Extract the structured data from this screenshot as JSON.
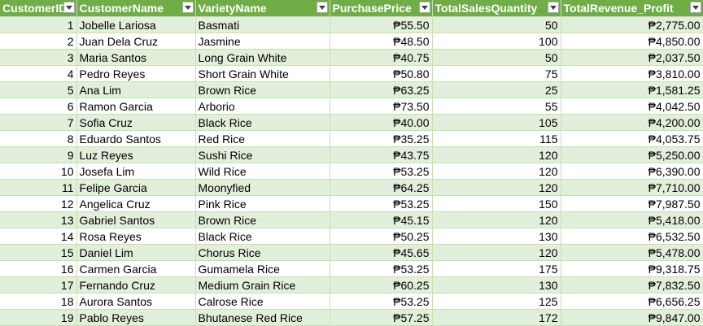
{
  "colors": {
    "header_bg": "#70ad47",
    "header_text": "#ffffff",
    "band_bg": "#e2efda",
    "row_bg": "#ffffff"
  },
  "headers": [
    "CustomerID",
    "CustomerName",
    "VarietyName",
    "PurchasePrice",
    "TotalSalesQuantity",
    "TotalRevenue_Profit"
  ],
  "filter_icon": "dropdown-arrow-icon",
  "rows": [
    [
      "1",
      "Jobelle Lariosa",
      "Basmati",
      "₱55.50",
      "50",
      "₱2,775.00"
    ],
    [
      "2",
      "Juan Dela Cruz",
      "Jasmine",
      "₱48.50",
      "100",
      "₱4,850.00"
    ],
    [
      "3",
      "Maria Santos",
      "Long Grain White",
      "₱40.75",
      "50",
      "₱2,037.50"
    ],
    [
      "4",
      "Pedro Reyes",
      "Short Grain White",
      "₱50.80",
      "75",
      "₱3,810.00"
    ],
    [
      "5",
      "Ana Lim",
      "Brown Rice",
      "₱63.25",
      "25",
      "₱1,581.25"
    ],
    [
      "6",
      "Ramon Garcia",
      "Arborio",
      "₱73.50",
      "55",
      "₱4,042.50"
    ],
    [
      "7",
      "Sofia Cruz",
      "Black Rice",
      "₱40.00",
      "105",
      "₱4,200.00"
    ],
    [
      "8",
      "Eduardo Santos",
      "Red Rice",
      "₱35.25",
      "115",
      "₱4,053.75"
    ],
    [
      "9",
      "Luz Reyes",
      "Sushi Rice",
      "₱43.75",
      "120",
      "₱5,250.00"
    ],
    [
      "10",
      "Josefa Lim",
      "Wild Rice",
      "₱53.25",
      "120",
      "₱6,390.00"
    ],
    [
      "11",
      "Felipe Garcia",
      "Moonyfied",
      "₱64.25",
      "120",
      "₱7,710.00"
    ],
    [
      "12",
      "Angelica Cruz",
      "Pink Rice",
      "₱53.25",
      "150",
      "₱7,987.50"
    ],
    [
      "13",
      "Gabriel Santos",
      "Brown Rice",
      "₱45.15",
      "120",
      "₱5,418.00"
    ],
    [
      "14",
      "Rosa Reyes",
      "Black Rice",
      "₱50.25",
      "130",
      "₱6,532.50"
    ],
    [
      "15",
      "Daniel Lim",
      "Chorus Rice",
      "₱45.65",
      "120",
      "₱5,478.00"
    ],
    [
      "16",
      "Carmen Garcia",
      "Gumamela Rice",
      "₱53.25",
      "175",
      "₱9,318.75"
    ],
    [
      "17",
      "Fernando Cruz",
      "Medium Grain Rice",
      "₱60.25",
      "130",
      "₱7,832.50"
    ],
    [
      "18",
      "Aurora Santos",
      "Calrose Rice",
      "₱53.25",
      "125",
      "₱6,656.25"
    ],
    [
      "19",
      "Pablo Reyes",
      "Bhutanese Red Rice",
      "₱57.25",
      "172",
      "₱9,847.00"
    ]
  ]
}
